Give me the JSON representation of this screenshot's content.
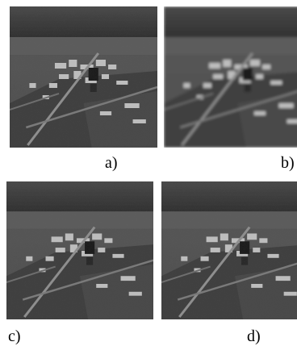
{
  "panels": [
    {
      "label": "a)"
    },
    {
      "label": "b)"
    },
    {
      "label": "c)"
    },
    {
      "label": "d)"
    }
  ]
}
